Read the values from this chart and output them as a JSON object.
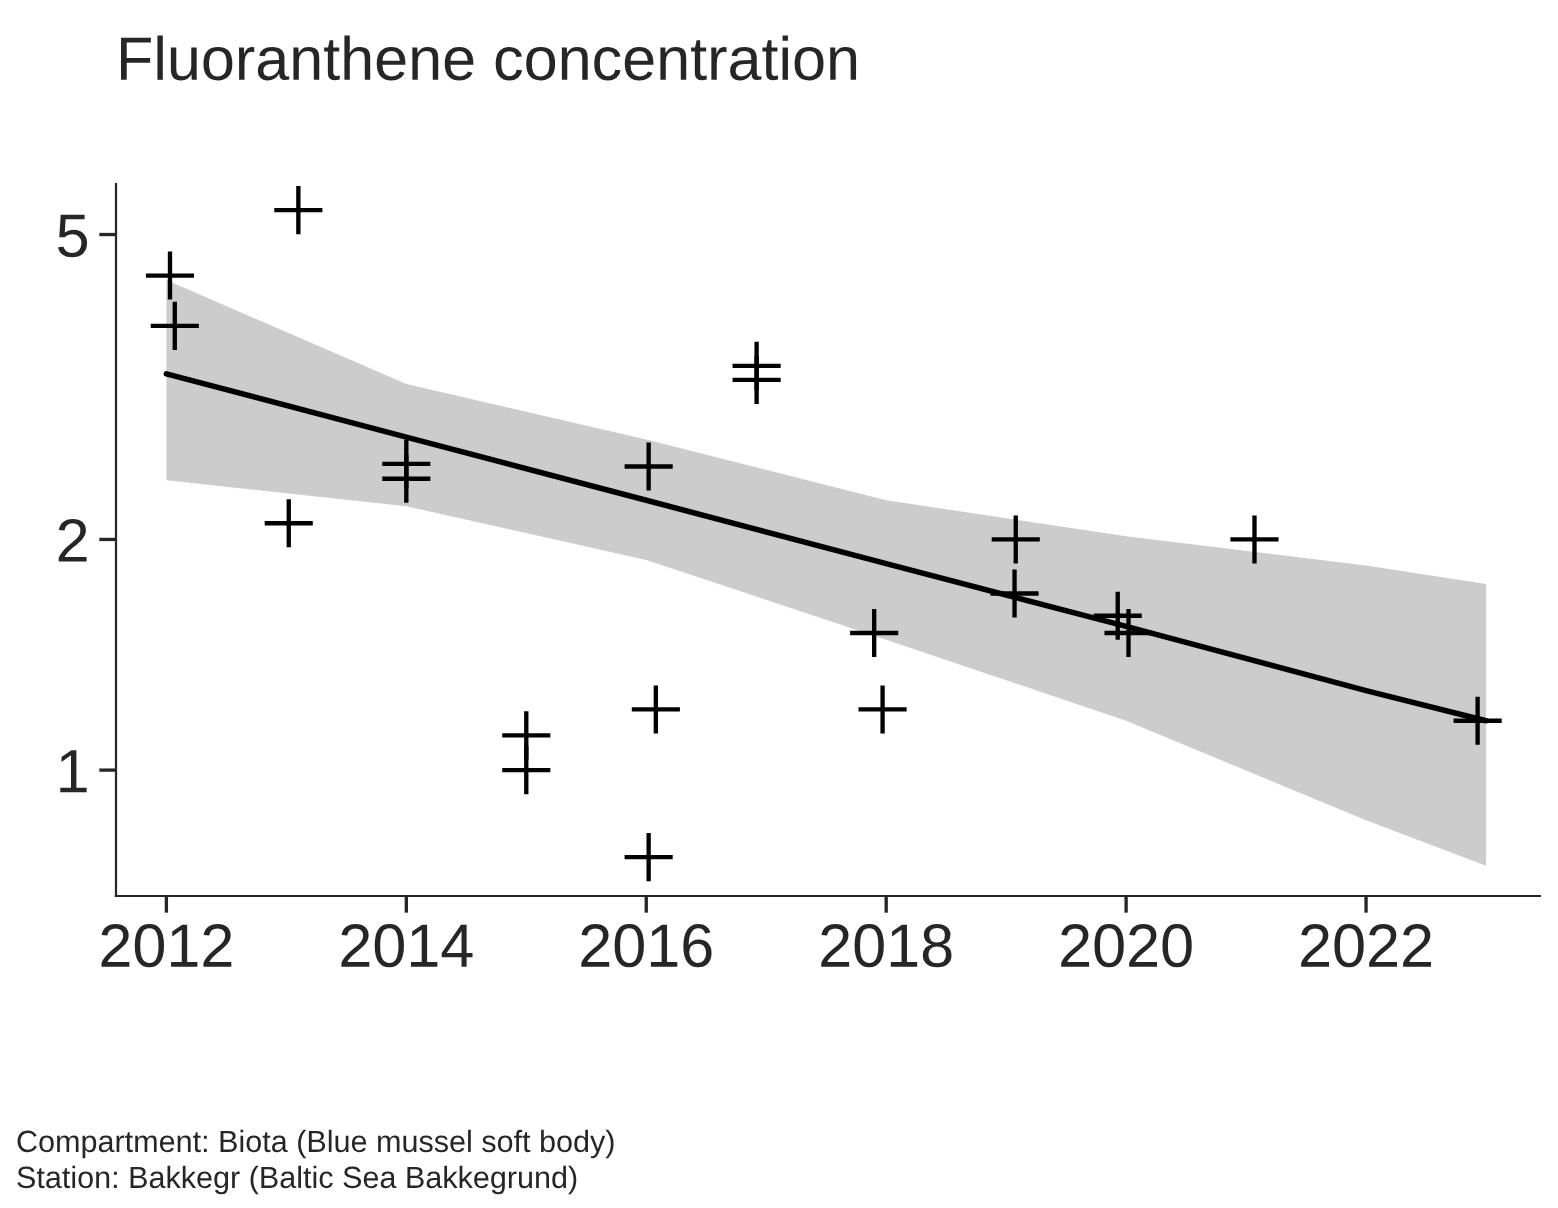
{
  "chart_data": {
    "type": "line",
    "title": "Fluoranthene concentration",
    "annotations": [
      "Compartment: Biota (Blue mussel soft body)",
      "Station: Bakkegr (Baltic Sea Bakkegrund)"
    ],
    "log": "y",
    "grid": false,
    "marker": "cross",
    "xlim": [
      2011.58,
      2023.45
    ],
    "xticks": [
      2012,
      2014,
      2016,
      2018,
      2020,
      2022
    ],
    "ylim": [
      0.685,
      5.82
    ],
    "yticks": [
      1,
      2,
      5
    ],
    "series": [
      {
        "type": "scatter",
        "color": "#000000",
        "x": [
          2012.03,
          2012.07,
          2013.1,
          2013.02,
          2014.0,
          2014.0,
          2015.0,
          2015.0,
          2016.02,
          2016.08,
          2016.02,
          2016.92,
          2016.92,
          2017.9,
          2017.97,
          2019.08,
          2019.07,
          2019.93,
          2020.02,
          2021.07,
          2022.93
        ],
        "values": [
          4.42,
          3.8,
          5.38,
          2.1,
          2.51,
          2.4,
          1.11,
          1.0,
          2.49,
          1.2,
          0.77,
          3.37,
          3.23,
          1.51,
          1.2,
          2.0,
          1.7,
          1.59,
          1.51,
          2.0,
          1.16
        ]
      },
      {
        "color": "#000000",
        "marker": "none",
        "line_style": "solid",
        "x": [
          2012,
          2014,
          2016,
          2018,
          2020,
          2022,
          2023
        ],
        "values": [
          3.29,
          2.72,
          2.25,
          1.86,
          1.54,
          1.27,
          1.16
        ],
        "lower": [
          2.39,
          2.21,
          1.88,
          1.48,
          1.16,
          0.86,
          0.75
        ],
        "upper": [
          4.36,
          3.19,
          2.7,
          2.25,
          2.02,
          1.85,
          1.75
        ]
      }
    ]
  }
}
